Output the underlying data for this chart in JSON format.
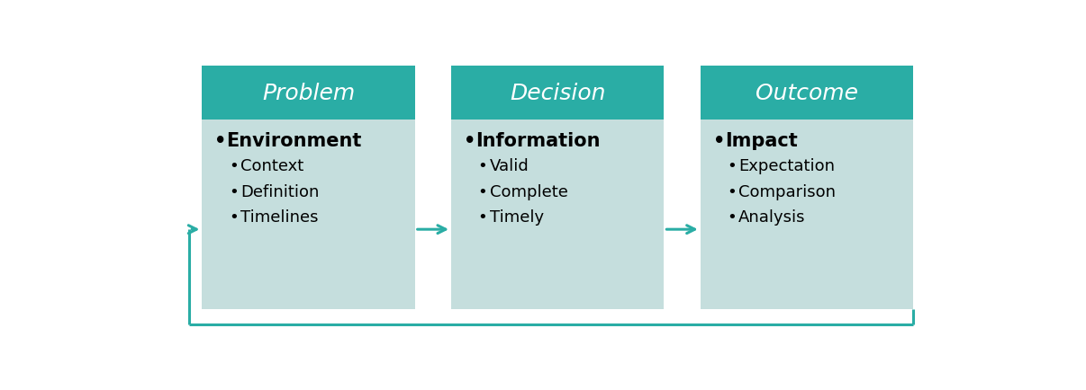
{
  "background_color": "#ffffff",
  "teal_header": "#2aada5",
  "box_body": "#c5dedd",
  "teal_arrow": "#2aada5",
  "header_text_color": "#ffffff",
  "body_text_color": "#000000",
  "columns": [
    {
      "title": "Problem",
      "bullet_main": "Environment",
      "bullet_subs": [
        "Context",
        "Definition",
        "Timelines"
      ]
    },
    {
      "title": "Decision",
      "bullet_main": "Information",
      "bullet_subs": [
        "Valid",
        "Complete",
        "Timely"
      ]
    },
    {
      "title": "Outcome",
      "bullet_main": "Impact",
      "bullet_subs": [
        "Expectation",
        "Comparison",
        "Analysis"
      ]
    }
  ],
  "figsize": [
    12.06,
    4.35
  ],
  "dpi": 100
}
